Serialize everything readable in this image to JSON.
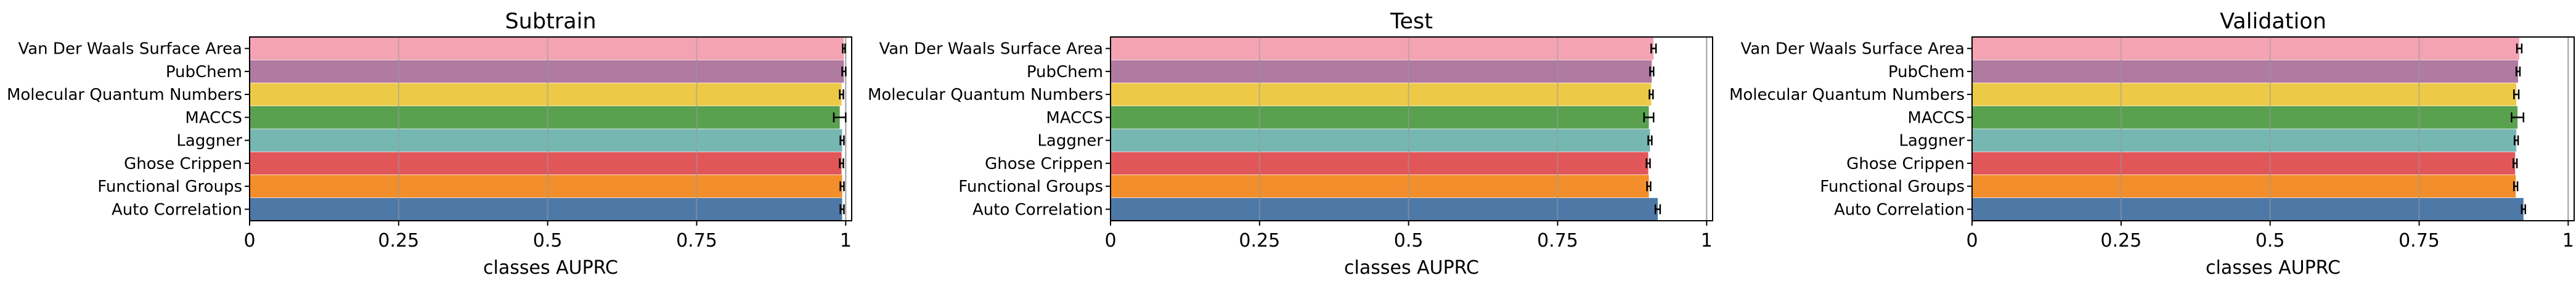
{
  "chart_data": [
    {
      "type": "bar",
      "orientation": "horizontal",
      "title": "Subtrain",
      "xlabel": "classes AUPRC",
      "xlim": [
        0,
        1.01
      ],
      "xticks": [
        0,
        0.25,
        0.5,
        0.75,
        1
      ],
      "xtick_labels": [
        "0",
        "0.25",
        "0.5",
        "0.75",
        "1"
      ],
      "grid": "vertical",
      "categories": [
        "Van Der Waals Surface Area",
        "PubChem",
        "Molecular Quantum Numbers",
        "MACCS",
        "Laggner",
        "Ghose Crippen",
        "Functional Groups",
        "Auto Correlation"
      ],
      "values": [
        0.997,
        0.997,
        0.993,
        0.99,
        0.994,
        0.993,
        0.994,
        0.994
      ],
      "errors": [
        0.002,
        0.003,
        0.003,
        0.01,
        0.003,
        0.003,
        0.003,
        0.003
      ],
      "colors": [
        "#F4A3B3",
        "#B07AA1",
        "#EDC948",
        "#59A14F",
        "#76B7B2",
        "#E15759",
        "#F28E2B",
        "#4E79A7"
      ]
    },
    {
      "type": "bar",
      "orientation": "horizontal",
      "title": "Test",
      "xlabel": "classes AUPRC",
      "xlim": [
        0,
        1.01
      ],
      "xticks": [
        0,
        0.25,
        0.5,
        0.75,
        1
      ],
      "xtick_labels": [
        "0",
        "0.25",
        "0.5",
        "0.75",
        "1"
      ],
      "grid": "vertical",
      "categories": [
        "Van Der Waals Surface Area",
        "PubChem",
        "Molecular Quantum Numbers",
        "MACCS",
        "Laggner",
        "Ghose Crippen",
        "Functional Groups",
        "Auto Correlation"
      ],
      "values": [
        0.911,
        0.908,
        0.907,
        0.903,
        0.905,
        0.902,
        0.903,
        0.918
      ],
      "errors": [
        0.004,
        0.003,
        0.003,
        0.008,
        0.003,
        0.003,
        0.003,
        0.004
      ],
      "colors": [
        "#F4A3B3",
        "#B07AA1",
        "#EDC948",
        "#59A14F",
        "#76B7B2",
        "#E15759",
        "#F28E2B",
        "#4E79A7"
      ]
    },
    {
      "type": "bar",
      "orientation": "horizontal",
      "title": "Validation",
      "xlabel": "classes AUPRC",
      "xlim": [
        0,
        1.01
      ],
      "xticks": [
        0,
        0.25,
        0.5,
        0.75,
        1
      ],
      "xtick_labels": [
        "0",
        "0.25",
        "0.5",
        "0.75",
        "1"
      ],
      "grid": "vertical",
      "categories": [
        "Van Der Waals Surface Area",
        "PubChem",
        "Molecular Quantum Numbers",
        "MACCS",
        "Laggner",
        "Ghose Crippen",
        "Functional Groups",
        "Auto Correlation"
      ],
      "values": [
        0.918,
        0.916,
        0.913,
        0.915,
        0.913,
        0.911,
        0.912,
        0.925
      ],
      "errors": [
        0.004,
        0.003,
        0.004,
        0.01,
        0.003,
        0.003,
        0.003,
        0.003
      ],
      "colors": [
        "#F4A3B3",
        "#B07AA1",
        "#EDC948",
        "#59A14F",
        "#76B7B2",
        "#E15759",
        "#F28E2B",
        "#4E79A7"
      ]
    }
  ]
}
